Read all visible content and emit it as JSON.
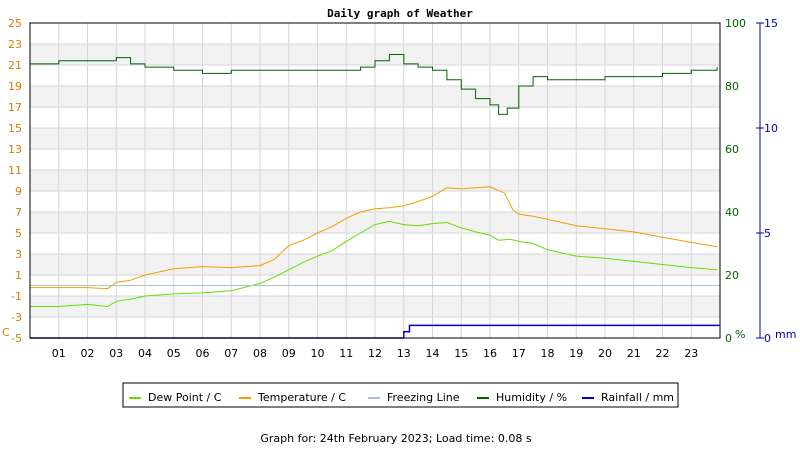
{
  "chart_data": {
    "type": "line",
    "title": "Daily graph of Weather",
    "footer": "Graph for: 24th February 2023; Load time: 0.08 s",
    "grid": true,
    "legend_position": "bottom",
    "axes": {
      "x": {
        "ticks": [
          "01",
          "02",
          "03",
          "04",
          "05",
          "06",
          "07",
          "08",
          "09",
          "10",
          "11",
          "12",
          "13",
          "14",
          "15",
          "16",
          "17",
          "18",
          "19",
          "20",
          "21",
          "22",
          "23"
        ],
        "range": [
          0,
          24
        ]
      },
      "y_left": {
        "unit": "C",
        "range": [
          -5,
          25
        ],
        "ticks": [
          -5,
          -3,
          -1,
          1,
          3,
          5,
          7,
          9,
          11,
          13,
          15,
          17,
          19,
          21,
          23,
          25
        ],
        "color": "#d08000"
      },
      "y_right1": {
        "unit": "%",
        "range": [
          0,
          100
        ],
        "ticks": [
          0,
          20,
          40,
          60,
          80,
          100
        ],
        "color": "#006400"
      },
      "y_right2": {
        "unit": "mm",
        "range": [
          0,
          15
        ],
        "ticks": [
          0,
          5,
          10,
          15
        ],
        "color": "#0000a0"
      }
    },
    "series": [
      {
        "name": "Dew Point / C",
        "axis": "y_left",
        "color": "#66dd00",
        "x": [
          0,
          1,
          2,
          2.7,
          3,
          3.5,
          4,
          5,
          6,
          7,
          8,
          8.5,
          9,
          9.5,
          10,
          10.5,
          11,
          11.5,
          12,
          12.5,
          13,
          13.5,
          14,
          14.5,
          15,
          15.5,
          16,
          16.3,
          16.7,
          17,
          17.5,
          18,
          19,
          20,
          21,
          22,
          23,
          23.9
        ],
        "y": [
          -2.0,
          -2.0,
          -1.8,
          -2.0,
          -1.5,
          -1.3,
          -1.0,
          -0.8,
          -0.7,
          -0.5,
          0.2,
          0.8,
          1.5,
          2.2,
          2.8,
          3.3,
          4.2,
          5.0,
          5.8,
          6.1,
          5.8,
          5.7,
          5.9,
          6.0,
          5.5,
          5.1,
          4.8,
          4.3,
          4.4,
          4.2,
          4.0,
          3.4,
          2.8,
          2.6,
          2.3,
          2.0,
          1.7,
          1.5
        ]
      },
      {
        "name": "Temperature / C",
        "axis": "y_left",
        "color": "#f0a000",
        "x": [
          0,
          1,
          2,
          2.7,
          3,
          3.5,
          4,
          5,
          6,
          7,
          8,
          8.5,
          9,
          9.5,
          10,
          10.5,
          11,
          11.5,
          12,
          12.5,
          13,
          13.5,
          14,
          14.5,
          15,
          15.5,
          16,
          16.5,
          16.8,
          17,
          17.5,
          18,
          19,
          20,
          21,
          22,
          23,
          23.9
        ],
        "y": [
          -0.2,
          -0.2,
          -0.2,
          -0.3,
          0.3,
          0.5,
          1.0,
          1.6,
          1.8,
          1.7,
          1.9,
          2.5,
          3.8,
          4.3,
          5.0,
          5.6,
          6.4,
          7.0,
          7.3,
          7.4,
          7.6,
          8.0,
          8.5,
          9.3,
          9.2,
          9.3,
          9.4,
          8.8,
          7.2,
          6.8,
          6.6,
          6.3,
          5.7,
          5.4,
          5.1,
          4.6,
          4.1,
          3.7
        ]
      },
      {
        "name": "Freezing Line",
        "axis": "y_left",
        "color": "#a9c0d8",
        "x": [
          0,
          24
        ],
        "y": [
          0,
          0
        ]
      },
      {
        "name": "Humidity / %",
        "axis": "y_right1",
        "color": "#006400",
        "step": true,
        "x": [
          0,
          1,
          2,
          2.6,
          3,
          3.5,
          4,
          5,
          6,
          7,
          8,
          9,
          10,
          11,
          11.5,
          12,
          12.5,
          13,
          13.5,
          14,
          14.5,
          15,
          15.5,
          16,
          16.3,
          16.6,
          17,
          17.5,
          18,
          19,
          20,
          21,
          22,
          23,
          23.9
        ],
        "y": [
          87,
          88,
          88,
          88,
          89,
          87,
          86,
          85,
          84,
          85,
          85,
          85,
          85,
          85,
          86,
          88,
          90,
          87,
          86,
          85,
          82,
          79,
          76,
          74,
          71,
          73,
          80,
          83,
          82,
          82,
          83,
          83,
          84,
          85,
          86
        ]
      },
      {
        "name": "Rainfall / mm",
        "axis": "y_right2",
        "color": "#0000cc",
        "step": true,
        "x": [
          0,
          12.5,
          13.0,
          13.2,
          24
        ],
        "y": [
          0,
          0,
          0.3,
          0.6,
          0.6
        ]
      }
    ]
  }
}
